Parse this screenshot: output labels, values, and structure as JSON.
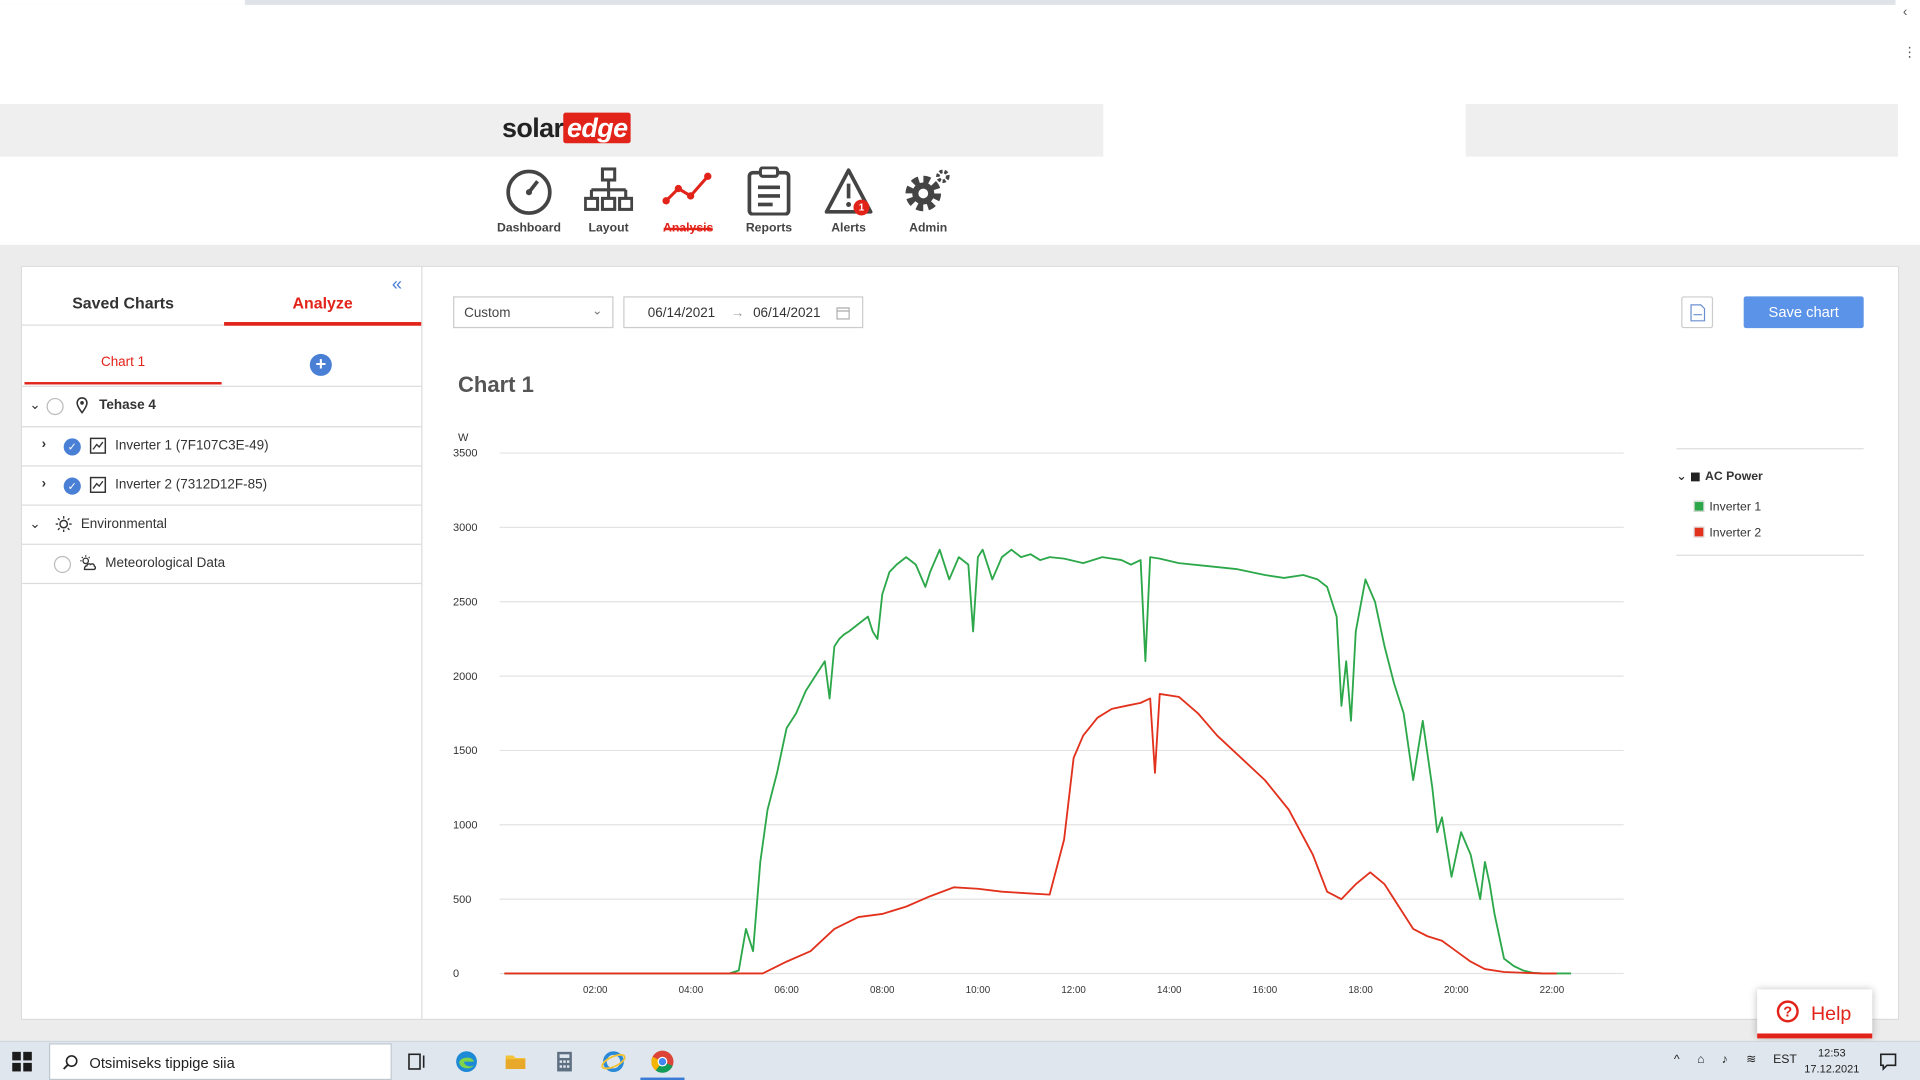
{
  "brand": {
    "solar": "solar",
    "edge": "edge"
  },
  "nav": [
    {
      "label": "Dashboard"
    },
    {
      "label": "Layout"
    },
    {
      "label": "Analysis"
    },
    {
      "label": "Reports"
    },
    {
      "label": "Alerts",
      "badge": "1"
    },
    {
      "label": "Admin"
    }
  ],
  "sidebar": {
    "tabs": [
      "Saved Charts",
      "Analyze"
    ],
    "chart_tab": "Chart 1",
    "add_symbol": "+",
    "tree": [
      {
        "label": "Tehase 4"
      },
      {
        "label": "Inverter 1 (7F107C3E-49)"
      },
      {
        "label": "Inverter 2 (7312D12F-85)"
      },
      {
        "label": "Environmental"
      },
      {
        "label": "Meteorological Data"
      }
    ]
  },
  "toolbar": {
    "period": "Custom",
    "date_from": "06/14/2021",
    "date_arrow": "→",
    "date_to": "06/14/2021",
    "save_label": "Save chart"
  },
  "chart_title": "Chart 1",
  "legend": {
    "group": "AC Power",
    "items": [
      {
        "name": "Inverter 1",
        "color": "#2ca84a"
      },
      {
        "name": "Inverter 2",
        "color": "#e2311d"
      }
    ]
  },
  "chart_data": {
    "type": "line",
    "ylabel": "W",
    "ylim": [
      0,
      3500
    ],
    "yticks": [
      0,
      500,
      1000,
      1500,
      2000,
      2500,
      3000,
      3500
    ],
    "xlim": [
      0,
      23.5
    ],
    "xticks": [
      "02:00",
      "04:00",
      "06:00",
      "08:00",
      "10:00",
      "12:00",
      "14:00",
      "16:00",
      "18:00",
      "20:00",
      "22:00"
    ],
    "grid": true,
    "legend_position": "right",
    "series": [
      {
        "name": "Inverter 1",
        "color": "#2ca84a",
        "x": [
          0.1,
          4.8,
          5.0,
          5.15,
          5.3,
          5.45,
          5.6,
          5.8,
          6.0,
          6.2,
          6.4,
          6.6,
          6.8,
          6.9,
          7.0,
          7.1,
          7.2,
          7.3,
          7.5,
          7.7,
          7.8,
          7.9,
          8.0,
          8.15,
          8.3,
          8.5,
          8.7,
          8.9,
          9.0,
          9.2,
          9.4,
          9.6,
          9.8,
          9.9,
          10.0,
          10.1,
          10.3,
          10.5,
          10.7,
          10.9,
          11.1,
          11.3,
          11.5,
          11.8,
          12.2,
          12.6,
          13.0,
          13.2,
          13.4,
          13.5,
          13.6,
          13.8,
          14.2,
          14.8,
          15.4,
          16.0,
          16.4,
          16.8,
          17.1,
          17.3,
          17.5,
          17.6,
          17.7,
          17.8,
          17.9,
          18.1,
          18.3,
          18.5,
          18.7,
          18.9,
          19.1,
          19.3,
          19.5,
          19.6,
          19.7,
          19.8,
          19.9,
          20.1,
          20.3,
          20.5,
          20.6,
          20.7,
          20.8,
          20.9,
          21.0,
          21.2,
          21.4,
          21.6,
          21.8,
          22.0,
          22.2,
          22.4
        ],
        "values": [
          0,
          0,
          20,
          300,
          150,
          750,
          1100,
          1350,
          1650,
          1750,
          1900,
          2000,
          2100,
          1850,
          2200,
          2250,
          2280,
          2300,
          2350,
          2400,
          2300,
          2250,
          2550,
          2700,
          2750,
          2800,
          2750,
          2600,
          2700,
          2850,
          2650,
          2800,
          2750,
          2300,
          2800,
          2850,
          2650,
          2800,
          2850,
          2800,
          2820,
          2780,
          2800,
          2790,
          2760,
          2800,
          2780,
          2750,
          2780,
          2100,
          2800,
          2790,
          2760,
          2740,
          2720,
          2680,
          2660,
          2680,
          2650,
          2600,
          2400,
          1800,
          2100,
          1700,
          2300,
          2650,
          2500,
          2200,
          1950,
          1750,
          1300,
          1700,
          1250,
          950,
          1050,
          850,
          650,
          950,
          800,
          500,
          750,
          600,
          400,
          250,
          100,
          50,
          20,
          5,
          0,
          0,
          0,
          0
        ]
      },
      {
        "name": "Inverter 2",
        "color": "#e2311d",
        "x": [
          0.1,
          5.0,
          5.5,
          6.0,
          6.5,
          7.0,
          7.5,
          8.0,
          8.5,
          9.0,
          9.5,
          10.0,
          10.5,
          11.0,
          11.5,
          11.8,
          12.0,
          12.2,
          12.5,
          12.8,
          13.1,
          13.4,
          13.6,
          13.7,
          13.8,
          14.2,
          14.6,
          15.0,
          15.5,
          16.0,
          16.5,
          17.0,
          17.3,
          17.6,
          17.9,
          18.2,
          18.5,
          18.8,
          19.1,
          19.4,
          19.7,
          20.0,
          20.3,
          20.6,
          21.0,
          21.4,
          21.8,
          22.1
        ],
        "values": [
          0,
          0,
          0,
          80,
          150,
          300,
          380,
          400,
          450,
          520,
          580,
          570,
          550,
          540,
          530,
          900,
          1450,
          1600,
          1720,
          1780,
          1800,
          1820,
          1850,
          1350,
          1880,
          1860,
          1750,
          1600,
          1450,
          1300,
          1100,
          800,
          550,
          500,
          600,
          680,
          600,
          450,
          300,
          250,
          220,
          150,
          80,
          30,
          10,
          5,
          0,
          0
        ]
      }
    ]
  },
  "help": {
    "symbol": "?",
    "label": "Help"
  },
  "taskbar": {
    "search_placeholder": "Otsimiseks tippige siia",
    "lang": "EST",
    "time": "12:53",
    "date": "17.12.2021"
  }
}
